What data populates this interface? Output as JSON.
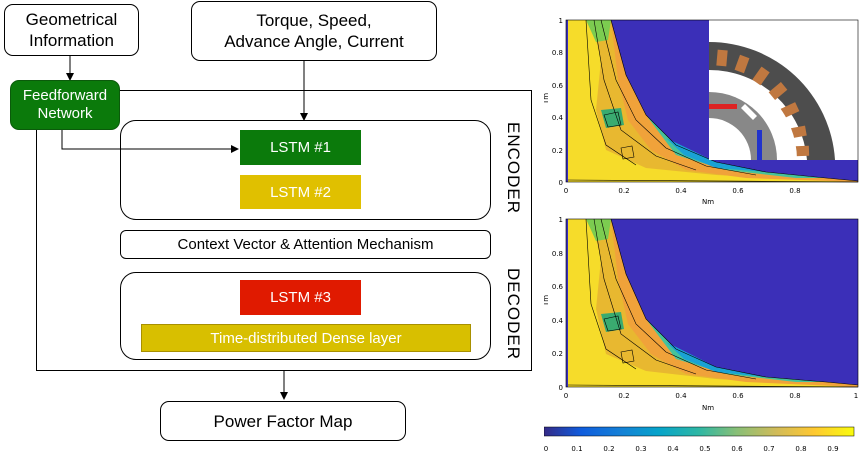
{
  "inputs": {
    "geometry": "Geometrical\nInformation",
    "operating": "Torque, Speed,\nAdvance Angle, Current"
  },
  "ffn": "Feedforward\nNetwork",
  "encoder": {
    "label": "ENCODER",
    "lstm1": "LSTM #1",
    "lstm2": "LSTM #2"
  },
  "context": "Context Vector & Attention Mechanism",
  "decoder": {
    "label": "DECODER",
    "lstm3": "LSTM #3",
    "dense": "Time-distributed Dense layer"
  },
  "output": "Power Factor Map",
  "colors": {
    "ffn": "#0b7a0b",
    "lstm1": "#0b7a0b",
    "lstm2": "#e0c000",
    "lstm3": "#e01a00",
    "dense": "#d8bf00",
    "plot_bg": "#3b2fb8"
  },
  "plots": {
    "xlabel": "Nm",
    "ylabel": "Tm",
    "xticks": [
      "0",
      "0.2",
      "0.4",
      "0.6",
      "0.8"
    ],
    "xticks_bottom": [
      "0",
      "0.2",
      "0.4",
      "0.6",
      "0.8",
      "1"
    ],
    "yticks": [
      "0",
      "0.2",
      "0.4",
      "0.6",
      "0.8",
      "1"
    ]
  },
  "colorbar": {
    "ticks": [
      "0",
      "0.1",
      "0.2",
      "0.3",
      "0.4",
      "0.5",
      "0.6",
      "0.7",
      "0.8",
      "0.9"
    ],
    "colormap": "parula"
  }
}
